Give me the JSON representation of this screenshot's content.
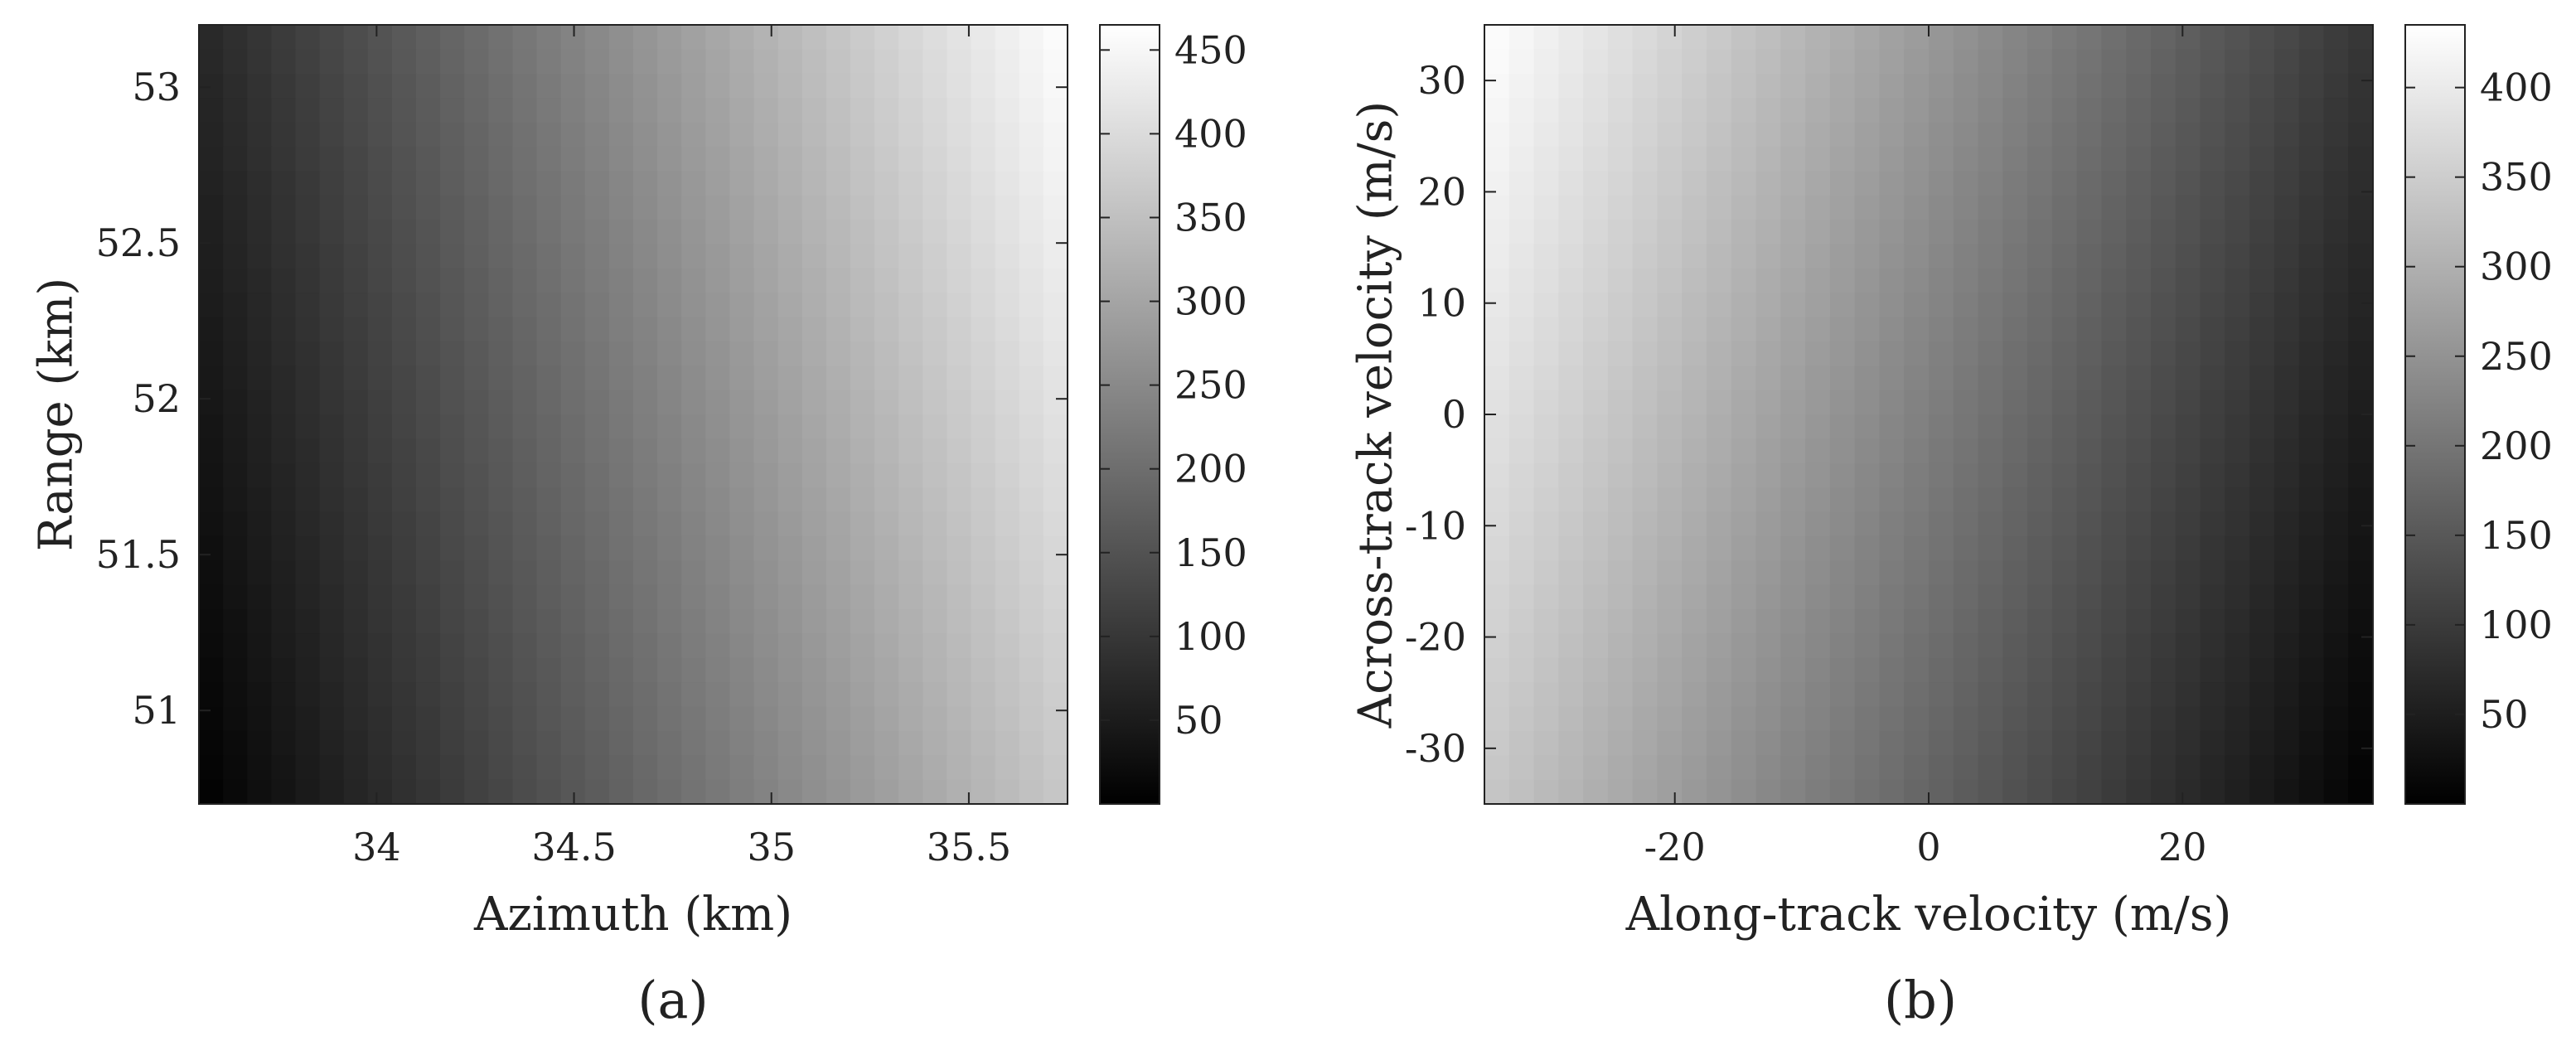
{
  "chart_data": [
    {
      "type": "heatmap",
      "panel_label": "(a)",
      "xlabel": "Azimuth (km)",
      "ylabel": "Range (km)",
      "xlim": [
        33.55,
        35.75
      ],
      "ylim": [
        50.7,
        53.2
      ],
      "xticks": [
        34,
        34.5,
        35,
        35.5
      ],
      "xtick_labels": [
        "34",
        "34.5",
        "35",
        "35.5"
      ],
      "yticks": [
        51,
        51.5,
        52,
        52.5,
        53
      ],
      "ytick_labels": [
        "51",
        "51.5",
        "52",
        "52.5",
        "53"
      ],
      "colormap": "gray",
      "clim": [
        0,
        465
      ],
      "colorbar_ticks": [
        50,
        100,
        150,
        200,
        250,
        300,
        350,
        400,
        450
      ],
      "colorbar_tick_labels": [
        "50",
        "100",
        "150",
        "200",
        "250",
        "300",
        "350",
        "400",
        "450"
      ],
      "corner_values": {
        "x_min_y_min": 0,
        "x_max_y_min": 365,
        "x_min_y_max": 70,
        "x_max_y_max": 465
      }
    },
    {
      "type": "heatmap",
      "panel_label": "(b)",
      "xlabel": "Along-track velocity (m/s)",
      "ylabel": "Across-track velocity (m/s)",
      "xlim": [
        -35,
        35
      ],
      "ylim": [
        -35,
        35
      ],
      "xticks": [
        -20,
        0,
        20
      ],
      "xtick_labels": [
        "-20",
        "0",
        "20"
      ],
      "yticks": [
        -30,
        -20,
        -10,
        0,
        10,
        20,
        30
      ],
      "ytick_labels": [
        "-30",
        "-20",
        "-10",
        "0",
        "10",
        "20",
        "30"
      ],
      "colormap": "gray",
      "clim": [
        0,
        435
      ],
      "colorbar_ticks": [
        50,
        100,
        150,
        200,
        250,
        300,
        350,
        400
      ],
      "colorbar_tick_labels": [
        "50",
        "100",
        "150",
        "200",
        "250",
        "300",
        "350",
        "400"
      ],
      "corner_values": {
        "x_min_y_min": 340,
        "x_max_y_min": 0,
        "x_min_y_max": 435,
        "x_max_y_max": 90
      }
    }
  ]
}
